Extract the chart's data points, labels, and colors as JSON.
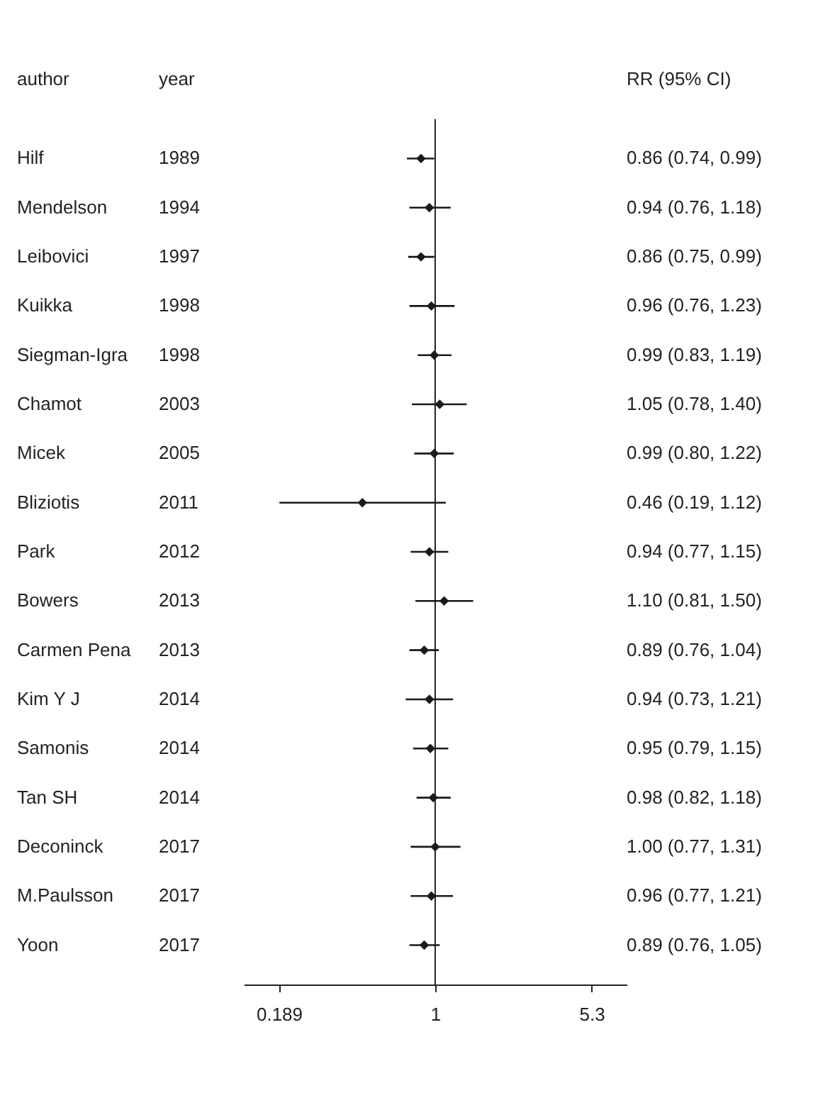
{
  "chart_data": {
    "type": "scatter",
    "orientation": "horizontal",
    "log": "x",
    "categories": [
      "Hilf",
      "Mendelson",
      "Leibovici",
      "Kuikka",
      "Siegman-Igra",
      "Chamot",
      "Micek",
      "Bliziotis",
      "Park",
      "Bowers",
      "Carmen Pena",
      "Kim Y J",
      "Samonis",
      "Tan SH",
      "Deconinck",
      "M.Paulsson",
      "Yoon"
    ],
    "y2_categories": [
      "1989",
      "1994",
      "1997",
      "1998",
      "1998",
      "2003",
      "2005",
      "2011",
      "2012",
      "2013",
      "2013",
      "2014",
      "2014",
      "2014",
      "2017",
      "2017",
      "2017"
    ],
    "series": [
      {
        "color": "#1a1a1a",
        "values": [
          0.86,
          0.94,
          0.86,
          0.96,
          0.99,
          1.05,
          0.99,
          0.46,
          0.94,
          1.1,
          0.89,
          0.94,
          0.95,
          0.98,
          1.0,
          0.96,
          0.89
        ],
        "errors": [
          [
            0.74,
            0.99
          ],
          [
            0.76,
            1.18
          ],
          [
            0.75,
            0.99
          ],
          [
            0.76,
            1.23
          ],
          [
            0.83,
            1.19
          ],
          [
            0.78,
            1.4
          ],
          [
            0.8,
            1.22
          ],
          [
            0.19,
            1.12
          ],
          [
            0.77,
            1.15
          ],
          [
            0.81,
            1.5
          ],
          [
            0.76,
            1.04
          ],
          [
            0.73,
            1.21
          ],
          [
            0.79,
            1.15
          ],
          [
            0.82,
            1.18
          ],
          [
            0.77,
            1.31
          ],
          [
            0.77,
            1.21
          ],
          [
            0.76,
            1.05
          ]
        ],
        "value_labels": [
          "0.86 (0.74, 0.99)",
          "0.94 (0.76, 1.18)",
          "0.86 (0.75, 0.99)",
          "0.96 (0.76, 1.23)",
          "0.99 (0.83, 1.19)",
          "1.05 (0.78, 1.40)",
          "0.99 (0.80, 1.22)",
          "0.46 (0.19, 1.12)",
          "0.94 (0.77, 1.15)",
          "1.10 (0.81, 1.50)",
          "0.89 (0.76, 1.04)",
          "0.94 (0.73, 1.21)",
          "0.95 (0.79, 1.15)",
          "0.98 (0.82, 1.18)",
          "1.00 (0.77, 1.31)",
          "0.96 (0.77, 1.21)",
          "0.89 (0.76, 1.05)"
        ]
      }
    ],
    "xlim": [
      0.13,
      7.7
    ],
    "xticks": [
      0.189,
      1,
      5.3
    ],
    "ref_lines": [
      {
        "axis": "x",
        "value": 1
      }
    ],
    "marker": "diamond",
    "grid": false,
    "annotations": [
      "author",
      "year",
      "RR (95% CI)"
    ]
  }
}
